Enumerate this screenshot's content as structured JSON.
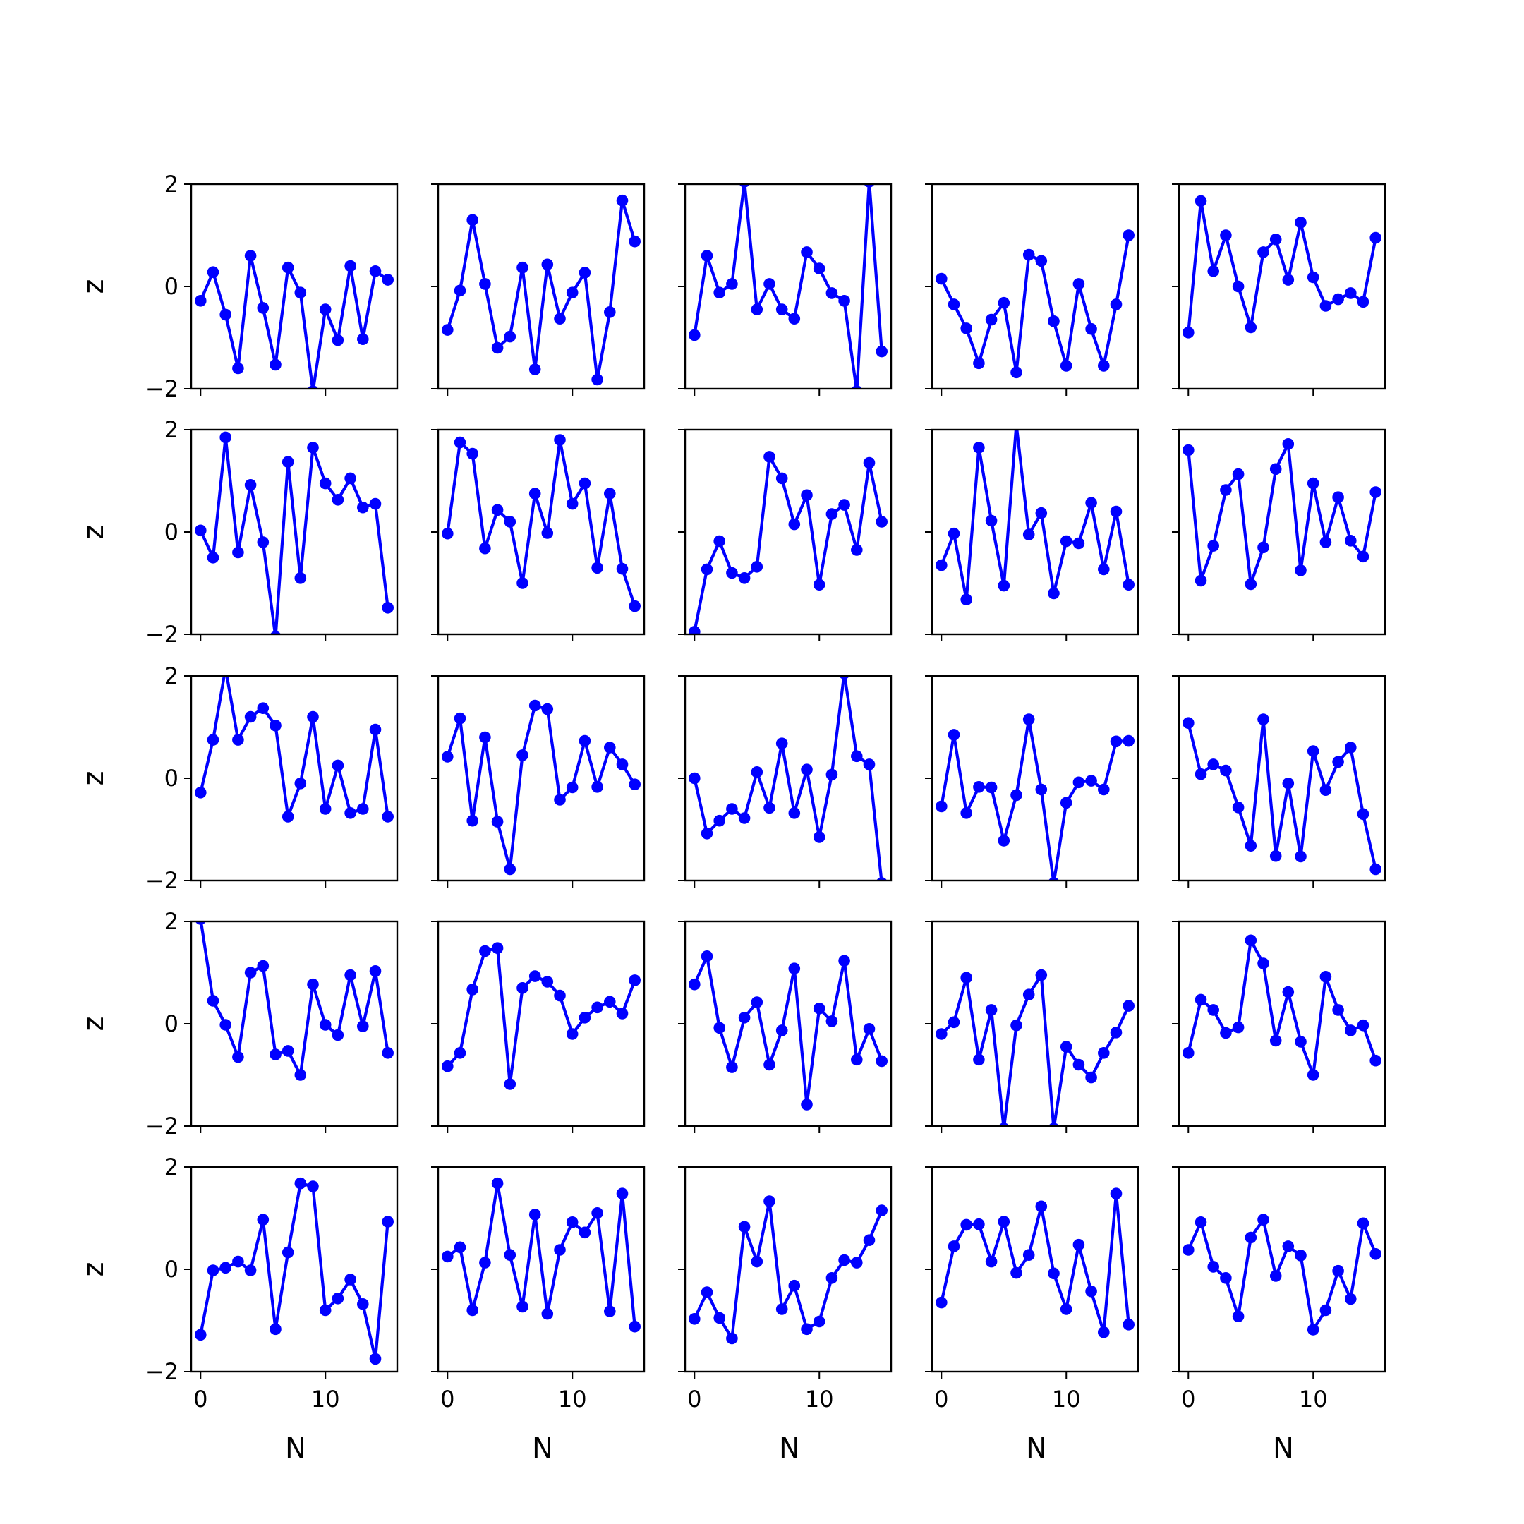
{
  "chart_data": {
    "type": "line",
    "grid": {
      "rows": 5,
      "cols": 5
    },
    "xlabel": "N",
    "ylabel": "z",
    "xlim": [
      -0.75,
      15.75
    ],
    "ylim": [
      -2,
      2
    ],
    "xticks": [
      0,
      10
    ],
    "xtick_labels": [
      "0",
      "10"
    ],
    "yticks": [
      -2,
      0,
      2
    ],
    "ytick_labels": [
      "−2",
      "0",
      "2"
    ],
    "grid_lines": false,
    "legend": "none",
    "line_color": "#0000ff",
    "marker": "circle",
    "x": [
      0,
      1,
      2,
      3,
      4,
      5,
      6,
      7,
      8,
      9,
      10,
      11,
      12,
      13,
      14,
      15
    ],
    "panels": [
      {
        "row": 0,
        "col": 0,
        "values": [
          -0.28,
          0.28,
          -0.55,
          -1.6,
          0.6,
          -0.42,
          -1.53,
          0.37,
          -0.12,
          -2.05,
          -0.45,
          -1.05,
          0.4,
          -1.03,
          0.3,
          0.13
        ]
      },
      {
        "row": 0,
        "col": 1,
        "values": [
          -0.85,
          -0.08,
          1.3,
          0.05,
          -1.2,
          -0.98,
          0.37,
          -1.62,
          0.43,
          -0.63,
          -0.12,
          0.27,
          -1.82,
          -0.5,
          1.68,
          0.88
        ]
      },
      {
        "row": 0,
        "col": 2,
        "values": [
          -0.95,
          0.6,
          -0.12,
          0.05,
          2.05,
          -0.45,
          0.05,
          -0.45,
          -0.63,
          0.67,
          0.35,
          -0.13,
          -0.28,
          -2.05,
          2.05,
          -1.27
        ]
      },
      {
        "row": 0,
        "col": 3,
        "values": [
          0.15,
          -0.35,
          -0.82,
          -1.5,
          -0.65,
          -0.32,
          -1.68,
          0.62,
          0.5,
          -0.68,
          -1.55,
          0.05,
          -0.83,
          -1.55,
          -0.35,
          1.0
        ]
      },
      {
        "row": 0,
        "col": 4,
        "values": [
          -0.9,
          1.67,
          0.3,
          1.0,
          0.0,
          -0.8,
          0.67,
          0.92,
          0.13,
          1.25,
          0.18,
          -0.38,
          -0.25,
          -0.13,
          -0.3,
          0.95
        ]
      },
      {
        "row": 1,
        "col": 0,
        "values": [
          0.03,
          -0.5,
          1.85,
          -0.4,
          0.92,
          -0.2,
          -2.05,
          1.37,
          -0.9,
          1.65,
          0.95,
          0.63,
          1.05,
          0.48,
          0.55,
          -1.48
        ]
      },
      {
        "row": 1,
        "col": 1,
        "values": [
          -0.03,
          1.75,
          1.53,
          -0.32,
          0.43,
          0.2,
          -1.0,
          0.75,
          -0.02,
          1.8,
          0.55,
          0.95,
          -0.7,
          0.75,
          -0.72,
          -1.45
        ]
      },
      {
        "row": 1,
        "col": 2,
        "values": [
          -1.95,
          -0.73,
          -0.18,
          -0.8,
          -0.9,
          -0.68,
          1.47,
          1.05,
          0.15,
          0.72,
          -1.03,
          0.35,
          0.53,
          -0.35,
          1.35,
          0.2
        ]
      },
      {
        "row": 1,
        "col": 3,
        "values": [
          -0.65,
          -0.03,
          -1.32,
          1.65,
          0.22,
          -1.05,
          2.1,
          -0.05,
          0.37,
          -1.2,
          -0.18,
          -0.22,
          0.57,
          -0.73,
          0.4,
          -1.03
        ]
      },
      {
        "row": 1,
        "col": 4,
        "values": [
          1.6,
          -0.95,
          -0.27,
          0.82,
          1.13,
          -1.02,
          -0.3,
          1.23,
          1.72,
          -0.75,
          0.95,
          -0.2,
          0.68,
          -0.17,
          -0.48,
          0.78
        ]
      },
      {
        "row": 2,
        "col": 0,
        "values": [
          -0.28,
          0.75,
          2.15,
          0.75,
          1.2,
          1.37,
          1.03,
          -0.75,
          -0.1,
          1.2,
          -0.6,
          0.25,
          -0.68,
          -0.6,
          0.95,
          -0.75
        ]
      },
      {
        "row": 2,
        "col": 1,
        "values": [
          0.42,
          1.17,
          -0.83,
          0.8,
          -0.85,
          -1.78,
          0.45,
          1.42,
          1.35,
          -0.42,
          -0.18,
          0.73,
          -0.17,
          0.6,
          0.27,
          -0.12
        ]
      },
      {
        "row": 2,
        "col": 2,
        "values": [
          0.0,
          -1.08,
          -0.83,
          -0.6,
          -0.78,
          0.12,
          -0.58,
          0.68,
          -0.68,
          0.17,
          -1.15,
          0.07,
          2.05,
          0.43,
          0.27,
          -2.05
        ]
      },
      {
        "row": 2,
        "col": 3,
        "values": [
          -0.55,
          0.85,
          -0.68,
          -0.17,
          -0.18,
          -1.22,
          -0.33,
          1.15,
          -0.22,
          -2.05,
          -0.48,
          -0.08,
          -0.05,
          -0.22,
          0.72,
          0.73
        ]
      },
      {
        "row": 2,
        "col": 4,
        "values": [
          1.08,
          0.08,
          0.27,
          0.15,
          -0.57,
          -1.32,
          1.15,
          -1.52,
          -0.1,
          -1.53,
          0.53,
          -0.23,
          0.32,
          0.6,
          -0.7,
          -1.78
        ]
      },
      {
        "row": 3,
        "col": 0,
        "values": [
          2.05,
          0.45,
          -0.02,
          -0.65,
          1.0,
          1.13,
          -0.6,
          -0.53,
          -1.0,
          0.77,
          -0.02,
          -0.22,
          0.95,
          -0.05,
          1.03,
          -0.57
        ]
      },
      {
        "row": 3,
        "col": 1,
        "values": [
          -0.83,
          -0.57,
          0.67,
          1.42,
          1.48,
          -1.18,
          0.7,
          0.93,
          0.82,
          0.55,
          -0.2,
          0.12,
          0.32,
          0.43,
          0.2,
          0.85
        ]
      },
      {
        "row": 3,
        "col": 2,
        "values": [
          0.77,
          1.32,
          -0.08,
          -0.85,
          0.12,
          0.42,
          -0.8,
          -0.13,
          1.08,
          -1.58,
          0.3,
          0.05,
          1.23,
          -0.7,
          -0.1,
          -0.73
        ]
      },
      {
        "row": 3,
        "col": 3,
        "values": [
          -0.2,
          0.03,
          0.9,
          -0.7,
          0.27,
          -2.05,
          -0.03,
          0.57,
          0.95,
          -2.05,
          -0.45,
          -0.8,
          -1.05,
          -0.57,
          -0.17,
          0.35
        ]
      },
      {
        "row": 3,
        "col": 4,
        "values": [
          -0.57,
          0.47,
          0.27,
          -0.18,
          -0.07,
          1.63,
          1.18,
          -0.33,
          0.62,
          -0.35,
          -1.0,
          0.92,
          0.27,
          -0.13,
          -0.03,
          -0.72
        ]
      },
      {
        "row": 4,
        "col": 0,
        "values": [
          -1.28,
          -0.02,
          0.03,
          0.15,
          -0.02,
          0.97,
          -1.17,
          0.33,
          1.68,
          1.62,
          -0.8,
          -0.57,
          -0.2,
          -0.68,
          -1.75,
          0.93
        ]
      },
      {
        "row": 4,
        "col": 1,
        "values": [
          0.25,
          0.43,
          -0.8,
          0.13,
          1.68,
          0.28,
          -0.73,
          1.07,
          -0.87,
          0.38,
          0.92,
          0.72,
          1.1,
          -0.82,
          1.48,
          -1.12
        ]
      },
      {
        "row": 4,
        "col": 2,
        "values": [
          -0.97,
          -0.45,
          -0.95,
          -1.35,
          0.83,
          0.15,
          1.33,
          -0.78,
          -0.32,
          -1.17,
          -1.02,
          -0.17,
          0.18,
          0.13,
          0.57,
          1.15
        ]
      },
      {
        "row": 4,
        "col": 3,
        "values": [
          -0.65,
          0.45,
          0.87,
          0.88,
          0.15,
          0.93,
          -0.07,
          0.28,
          1.23,
          -0.08,
          -0.78,
          0.48,
          -0.43,
          -1.23,
          1.48,
          -1.08
        ]
      },
      {
        "row": 4,
        "col": 4,
        "values": [
          0.38,
          0.92,
          0.05,
          -0.17,
          -0.92,
          0.62,
          0.97,
          -0.13,
          0.45,
          0.27,
          -1.18,
          -0.8,
          -0.03,
          -0.58,
          0.9,
          0.3
        ]
      }
    ]
  }
}
